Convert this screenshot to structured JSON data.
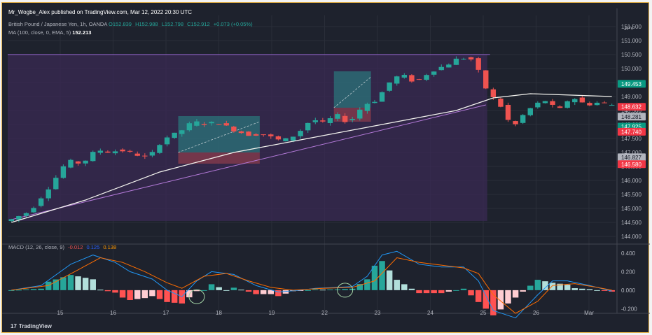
{
  "caption": "Mr_Wogbe_Alex published on TradingView.com, Mar 12, 2022 20:30 UTC",
  "symbol_line": {
    "name": "British Pound / Japanese Yen, 1h, OANDA",
    "open": "O152.839",
    "high": "H152.988",
    "low": "L152.798",
    "close": "C152.912",
    "change": "+0.073 (+0.05%)"
  },
  "ma_line": {
    "label": "MA (100, close, 0, EMA, 5)",
    "value": "152.213"
  },
  "macd_line": {
    "label": "MACD (12, 26, close, 9)",
    "hist": "-0.012",
    "macd": "0.125",
    "signal": "0.138"
  },
  "brand": "TradingView",
  "brand_icon": "tradingview-logo-icon",
  "colors": {
    "up": "#26a69a",
    "down": "#ef5350",
    "ma": "#f5f5f0",
    "macd": "#2196f3",
    "signal": "#ff6d00",
    "bg": "#1e222d",
    "zone": "#3a2a55"
  },
  "chart_data": [
    {
      "type": "candlestick",
      "title": "British Pound / Japanese Yen, 1h, OANDA",
      "currency": "JPY",
      "ylim": [
        143.8,
        151.9
      ],
      "y_ticks": [
        "144.000",
        "144.500",
        "145.000",
        "145.500",
        "146.000",
        "146.500",
        "147.000",
        "147.500",
        "148.000",
        "148.500",
        "149.000",
        "149.500",
        "150.000",
        "150.500",
        "151.000",
        "151.500"
      ],
      "x_labels": [
        "15",
        "16",
        "17",
        "18",
        "19",
        "22",
        "23",
        "24",
        "25",
        "26",
        "Mar"
      ],
      "price_path": [
        [
          0,
          144.55
        ],
        [
          3,
          144.9
        ],
        [
          6,
          145.9
        ],
        [
          8,
          146.7
        ],
        [
          10,
          146.6
        ],
        [
          12,
          147.1
        ],
        [
          14,
          147.0
        ],
        [
          15,
          147.1
        ],
        [
          17,
          146.95
        ],
        [
          19,
          146.8
        ],
        [
          21,
          147.5
        ],
        [
          23,
          147.7
        ],
        [
          25,
          148.1
        ],
        [
          27,
          148.0
        ],
        [
          28,
          148.1
        ],
        [
          31,
          147.75
        ],
        [
          33,
          147.6
        ],
        [
          34,
          147.7
        ],
        [
          37,
          147.4
        ],
        [
          39,
          147.65
        ],
        [
          41,
          148.2
        ],
        [
          43,
          148.0
        ],
        [
          44,
          148.4
        ],
        [
          46,
          148.05
        ],
        [
          48,
          148.7
        ],
        [
          50,
          148.9
        ],
        [
          51,
          149.4
        ],
        [
          53,
          149.8
        ],
        [
          55,
          149.5
        ],
        [
          57,
          149.9
        ],
        [
          59,
          150.1
        ],
        [
          61,
          150.4
        ],
        [
          63,
          150.3
        ],
        [
          64,
          149.5
        ],
        [
          65,
          149.1
        ],
        [
          67,
          148.5
        ],
        [
          68,
          147.8
        ],
        [
          69,
          148.2
        ],
        [
          71,
          148.7
        ],
        [
          73,
          148.9
        ],
        [
          74,
          148.4
        ],
        [
          76,
          149.0
        ],
        [
          78,
          148.7
        ],
        [
          80,
          148.8
        ],
        [
          81,
          148.7
        ]
      ],
      "ma_path": [
        [
          0,
          144.5
        ],
        [
          10,
          145.3
        ],
        [
          20,
          146.3
        ],
        [
          30,
          147.0
        ],
        [
          40,
          147.5
        ],
        [
          50,
          148.0
        ],
        [
          60,
          148.5
        ],
        [
          65,
          148.95
        ],
        [
          70,
          149.1
        ],
        [
          81,
          149.0
        ]
      ],
      "trend_line": [
        [
          0,
          144.6
        ],
        [
          64,
          148.7
        ]
      ],
      "resistance_level": 150.5,
      "long_positions": [
        {
          "start": 23,
          "end": 33,
          "tp": 148.3,
          "entry": 147.0,
          "sl": 146.6
        },
        {
          "start": 44,
          "end": 48,
          "tp": 149.9,
          "entry": 148.6,
          "sl": 148.1
        }
      ],
      "price_badges": [
        {
          "value": "149.453",
          "kind": "up"
        },
        {
          "value": "148.632",
          "kind": "down"
        },
        {
          "value": "148.281",
          "kind": "neutral"
        },
        {
          "value": "147.925",
          "kind": "up"
        },
        {
          "value": "147.740",
          "kind": "down"
        },
        {
          "value": "146.827",
          "kind": "neutral"
        },
        {
          "value": "146.580",
          "kind": "down"
        }
      ]
    },
    {
      "type": "macd",
      "title": "MACD (12, 26, close, 9)",
      "ylim": [
        -0.22,
        0.46
      ],
      "y_ticks": [
        "0.400",
        "0.200",
        "0.000",
        "-0.200"
      ],
      "macd_path": [
        [
          0,
          0.0
        ],
        [
          4,
          0.05
        ],
        [
          8,
          0.28
        ],
        [
          11,
          0.38
        ],
        [
          14,
          0.3
        ],
        [
          16,
          0.2
        ],
        [
          19,
          0.12
        ],
        [
          21,
          0.0
        ],
        [
          23,
          -0.07
        ],
        [
          25,
          0.1
        ],
        [
          27,
          0.2
        ],
        [
          30,
          0.17
        ],
        [
          33,
          0.05
        ],
        [
          36,
          -0.02
        ],
        [
          39,
          0.0
        ],
        [
          41,
          0.02
        ],
        [
          44,
          0.03
        ],
        [
          46,
          0.04
        ],
        [
          48,
          0.15
        ],
        [
          50,
          0.38
        ],
        [
          52,
          0.42
        ],
        [
          55,
          0.28
        ],
        [
          58,
          0.25
        ],
        [
          61,
          0.25
        ],
        [
          63,
          0.1
        ],
        [
          65,
          -0.22
        ],
        [
          68,
          -0.3
        ],
        [
          71,
          -0.05
        ],
        [
          73,
          0.1
        ],
        [
          75,
          0.1
        ],
        [
          78,
          0.05
        ],
        [
          81,
          -0.01
        ]
      ],
      "signal_path": [
        [
          0,
          0.0
        ],
        [
          5,
          0.05
        ],
        [
          9,
          0.22
        ],
        [
          12,
          0.35
        ],
        [
          15,
          0.3
        ],
        [
          18,
          0.2
        ],
        [
          21,
          0.08
        ],
        [
          23,
          0.02
        ],
        [
          26,
          0.15
        ],
        [
          29,
          0.18
        ],
        [
          32,
          0.1
        ],
        [
          35,
          0.03
        ],
        [
          38,
          0.0
        ],
        [
          42,
          0.02
        ],
        [
          46,
          0.03
        ],
        [
          49,
          0.1
        ],
        [
          52,
          0.35
        ],
        [
          55,
          0.3
        ],
        [
          58,
          0.27
        ],
        [
          61,
          0.24
        ],
        [
          63,
          0.18
        ],
        [
          65,
          -0.05
        ],
        [
          68,
          -0.25
        ],
        [
          71,
          -0.12
        ],
        [
          73,
          0.05
        ],
        [
          76,
          0.07
        ],
        [
          79,
          0.03
        ],
        [
          81,
          0.0
        ]
      ],
      "annotations": [
        {
          "x": 25,
          "y": -0.07
        },
        {
          "x": 45,
          "y": 0.0
        }
      ]
    }
  ]
}
